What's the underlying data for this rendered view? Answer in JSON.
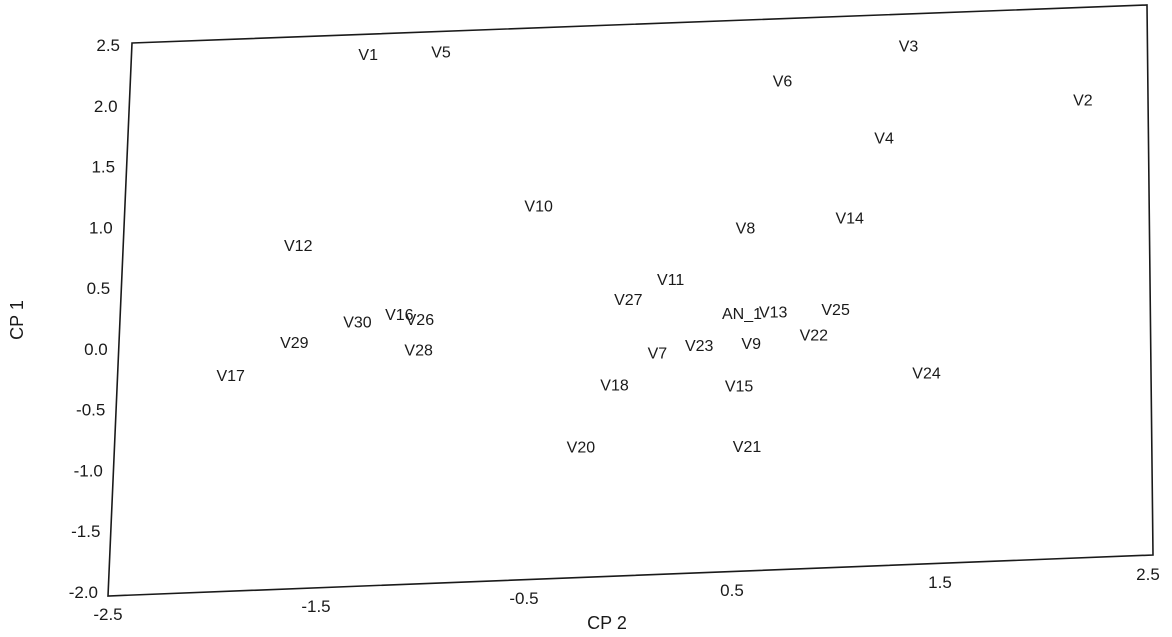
{
  "chart_data": {
    "type": "scatter",
    "xlabel": "CP 2",
    "ylabel": "CP 1",
    "xlim": [
      -2.5,
      2.5
    ],
    "ylim": [
      -2.0,
      2.5
    ],
    "xticks": [
      "-2.5",
      "-1.5",
      "-0.5",
      "0.5",
      "1.5",
      "2.5"
    ],
    "yticks": [
      "2.5",
      "2.0",
      "1.5",
      "1.0",
      "0.5",
      "0.0",
      "-0.5",
      "-1.0",
      "-1.5",
      "-2.0"
    ],
    "grid": false,
    "points": [
      {
        "label": "V1",
        "x": -1.35,
        "y": 2.3
      },
      {
        "label": "V5",
        "x": -1.0,
        "y": 2.3
      },
      {
        "label": "V3",
        "x": 1.25,
        "y": 2.2
      },
      {
        "label": "V6",
        "x": 0.65,
        "y": 1.95
      },
      {
        "label": "V2",
        "x": 2.1,
        "y": 1.7
      },
      {
        "label": "V4",
        "x": 1.15,
        "y": 1.45
      },
      {
        "label": "V10",
        "x": -0.5,
        "y": 1.0
      },
      {
        "label": "V14",
        "x": 1.0,
        "y": 0.8
      },
      {
        "label": "V8",
        "x": 0.5,
        "y": 0.75
      },
      {
        "label": "V12",
        "x": -1.65,
        "y": 0.75
      },
      {
        "label": "V11",
        "x": 0.15,
        "y": 0.35
      },
      {
        "label": "V27",
        "x": -0.05,
        "y": 0.2
      },
      {
        "label": "V30",
        "x": -1.35,
        "y": 0.1
      },
      {
        "label": "V16",
        "x": -1.15,
        "y": 0.15
      },
      {
        "label": "V26",
        "x": -1.05,
        "y": 0.1
      },
      {
        "label": "AN_1",
        "x": 0.5,
        "y": 0.05
      },
      {
        "label": "V13",
        "x": 0.65,
        "y": 0.05
      },
      {
        "label": "V25",
        "x": 0.95,
        "y": 0.05
      },
      {
        "label": "V29",
        "x": -1.65,
        "y": -0.05
      },
      {
        "label": "V28",
        "x": -1.05,
        "y": -0.15
      },
      {
        "label": "V22",
        "x": 0.85,
        "y": -0.15
      },
      {
        "label": "V9",
        "x": 0.55,
        "y": -0.2
      },
      {
        "label": "V23",
        "x": 0.3,
        "y": -0.2
      },
      {
        "label": "V7",
        "x": 0.1,
        "y": -0.25
      },
      {
        "label": "V17",
        "x": -1.95,
        "y": -0.3
      },
      {
        "label": "V18",
        "x": -0.1,
        "y": -0.5
      },
      {
        "label": "V15",
        "x": 0.5,
        "y": -0.55
      },
      {
        "label": "V24",
        "x": 1.4,
        "y": -0.5
      },
      {
        "label": "V20",
        "x": -0.25,
        "y": -1.0
      },
      {
        "label": "V21",
        "x": 0.55,
        "y": -1.05
      }
    ]
  }
}
